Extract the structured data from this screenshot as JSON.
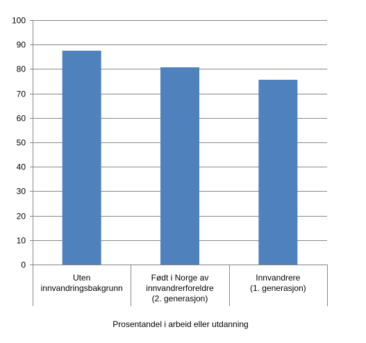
{
  "chart_data": {
    "type": "bar",
    "title": "",
    "xlabel": "Prosentandel i arbeid eller utdanning",
    "ylabel": "",
    "ylim": [
      0,
      100
    ],
    "yticks": [
      "0",
      "10",
      "20",
      "30",
      "40",
      "50",
      "60",
      "70",
      "80",
      "90",
      "100"
    ],
    "grid": true,
    "legend": "none",
    "categories": [
      [
        "Uten",
        "innvandringsbakgrunn"
      ],
      [
        "Født i Norge av",
        "innvandrerforeldre",
        "(2. generasjon)"
      ],
      [
        "Innvandrere",
        "(1. generasjon)"
      ]
    ],
    "values": [
      87.5,
      80.7,
      75.6
    ],
    "colors": {
      "bar": "#4f81bd",
      "grid": "#868686",
      "axis": "#868686"
    }
  }
}
